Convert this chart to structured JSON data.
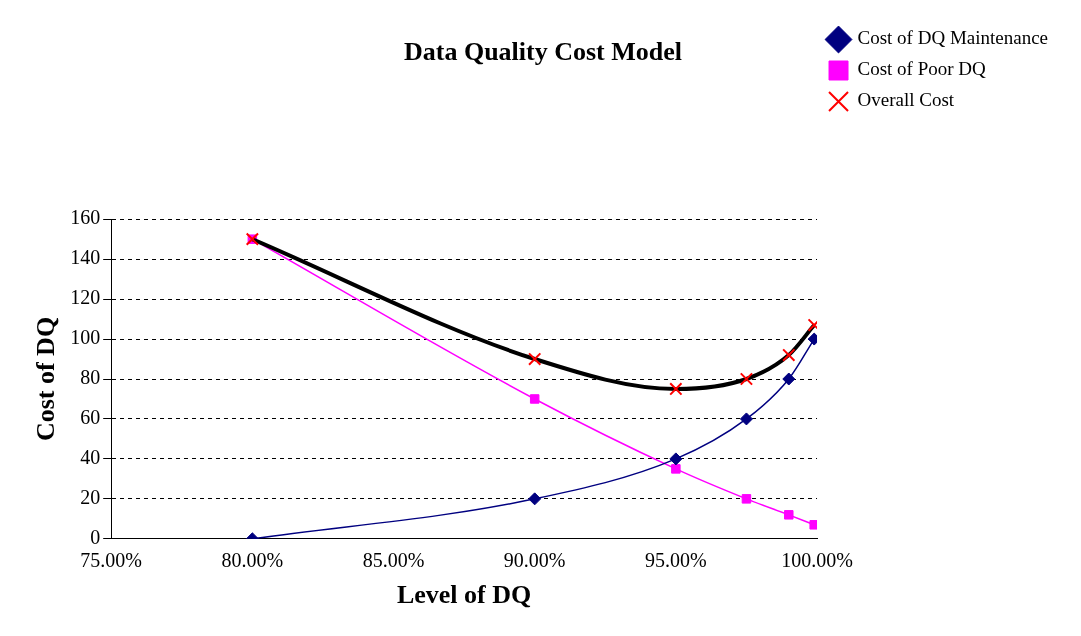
{
  "chart_data": {
    "type": "line",
    "title": "Data Quality Cost Model",
    "xlabel": "Level of DQ",
    "ylabel": "Cost of DQ",
    "x": [
      80,
      90,
      95,
      97.5,
      99,
      99.9
    ],
    "xlim": [
      75,
      100
    ],
    "xticks": [
      {
        "value": 75,
        "label": "75.00%"
      },
      {
        "value": 80,
        "label": "80.00%"
      },
      {
        "value": 85,
        "label": "85.00%"
      },
      {
        "value": 90,
        "label": "90.00%"
      },
      {
        "value": 95,
        "label": "95.00%"
      },
      {
        "value": 100,
        "label": "100.00%"
      }
    ],
    "ylim": [
      0,
      160
    ],
    "yticks": [
      0,
      20,
      40,
      60,
      80,
      100,
      120,
      140,
      160
    ],
    "grid": "y",
    "legend": "top right",
    "line_style": "solid",
    "series": [
      {
        "name": "Cost of DQ Maintenance",
        "color": "#000080",
        "marker": "diamond",
        "values": [
          0,
          20,
          40,
          60,
          80,
          100
        ]
      },
      {
        "name": "Cost of Poor DQ",
        "color": "#ff00ff",
        "marker": "square",
        "values": [
          150,
          70,
          35,
          20,
          12,
          7
        ]
      },
      {
        "name": "Overall Cost",
        "color": "#000000",
        "marker": "cross",
        "values": [
          150,
          90,
          75,
          80,
          92,
          107
        ]
      }
    ]
  }
}
